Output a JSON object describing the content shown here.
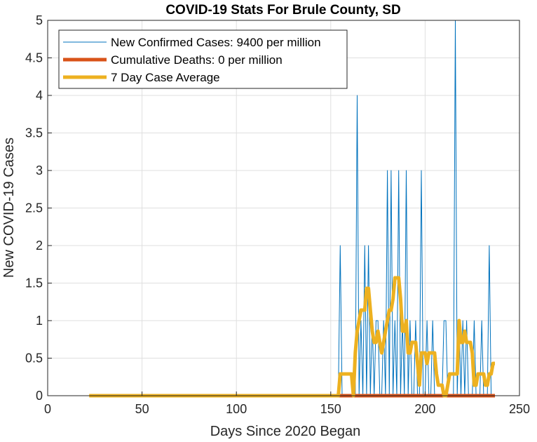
{
  "chart_data": {
    "type": "line",
    "title": "COVID-19 Stats For Brule County, SD",
    "xlabel": "Days Since 2020 Began",
    "ylabel": "New COVID-19 Cases",
    "xlim": [
      0,
      250
    ],
    "ylim": [
      0,
      5
    ],
    "xticks": [
      "0",
      "50",
      "100",
      "150",
      "200",
      "250"
    ],
    "yticks": [
      "0",
      "0.5",
      "1",
      "1.5",
      "2",
      "2.5",
      "3",
      "3.5",
      "4",
      "4.5",
      "5"
    ],
    "grid": true,
    "legend_position": "top-left",
    "series": [
      {
        "name": "New Confirmed Cases: 9400 per million",
        "color": "#0072BD",
        "x": [
          22,
          154,
          155,
          156,
          157,
          158,
          159,
          160,
          161,
          162,
          163,
          164,
          165,
          166,
          167,
          168,
          169,
          170,
          171,
          172,
          173,
          174,
          175,
          176,
          177,
          178,
          179,
          180,
          181,
          182,
          183,
          184,
          185,
          186,
          187,
          188,
          189,
          190,
          191,
          192,
          193,
          194,
          195,
          196,
          197,
          198,
          199,
          200,
          201,
          202,
          203,
          204,
          205,
          206,
          207,
          208,
          209,
          210,
          211,
          212,
          213,
          214,
          215,
          216,
          217,
          218,
          219,
          220,
          221,
          222,
          223,
          224,
          225,
          226,
          227,
          228,
          229,
          230,
          231,
          232,
          233,
          234,
          235,
          236,
          237
        ],
        "y": [
          0,
          0,
          2,
          0,
          0,
          0,
          0,
          0,
          0,
          0,
          0,
          4,
          0,
          1,
          0,
          2,
          0,
          2,
          0,
          1,
          0,
          1,
          1,
          0,
          0,
          1,
          0,
          3,
          0,
          3,
          0,
          1,
          0,
          3,
          0,
          1,
          0,
          3,
          0,
          1,
          0,
          0,
          1,
          0,
          0,
          3,
          0,
          0,
          1,
          0,
          0,
          1,
          0,
          0,
          0,
          0,
          0,
          1,
          1,
          0,
          0,
          0,
          0,
          5,
          0,
          1,
          0,
          1,
          0,
          1,
          0,
          0,
          0,
          1,
          0,
          0,
          0,
          1,
          0,
          0,
          0,
          2,
          0,
          0,
          0
        ]
      },
      {
        "name": "Cumulative Deaths: 0 per million",
        "color": "#D95319",
        "x": [
          154,
          237
        ],
        "y": [
          0,
          0
        ]
      },
      {
        "name": "7 Day Case Average",
        "color": "#EDB120",
        "x": [
          22,
          154,
          155,
          156,
          157,
          158,
          159,
          160,
          161,
          162,
          163,
          164,
          165,
          166,
          167,
          168,
          169,
          170,
          171,
          172,
          173,
          174,
          175,
          176,
          177,
          178,
          179,
          180,
          181,
          182,
          183,
          184,
          185,
          186,
          187,
          188,
          189,
          190,
          191,
          192,
          193,
          194,
          195,
          196,
          197,
          198,
          199,
          200,
          201,
          202,
          203,
          204,
          205,
          206,
          207,
          208,
          209,
          210,
          211,
          212,
          213,
          214,
          215,
          216,
          217,
          218,
          219,
          220,
          221,
          222,
          223,
          224,
          225,
          226,
          227,
          228,
          229,
          230,
          231,
          232,
          233,
          234,
          235,
          236,
          237
        ],
        "y": [
          0,
          0,
          0.29,
          0.29,
          0.29,
          0.29,
          0.29,
          0.29,
          0.29,
          0,
          0.57,
          0.86,
          1.0,
          1.14,
          1.14,
          1.14,
          1.43,
          1.43,
          1.14,
          0.86,
          0.71,
          0.71,
          0.86,
          0.71,
          0.57,
          0.71,
          0.86,
          1.0,
          1.14,
          1.14,
          1.29,
          1.57,
          1.57,
          1.57,
          1.29,
          0.86,
          0.86,
          1.0,
          0.57,
          0.57,
          0.71,
          0.71,
          0.71,
          0.43,
          0.14,
          0.57,
          0.57,
          0.57,
          0.43,
          0.57,
          0.57,
          0.57,
          0.57,
          0.29,
          0.14,
          0.14,
          0.14,
          0,
          0,
          0.14,
          0.29,
          0.29,
          0.29,
          0.29,
          0.29,
          1.0,
          0.71,
          0.71,
          0.86,
          0.71,
          0.71,
          0.71,
          0.57,
          0.14,
          0.14,
          0.29,
          0.29,
          0.29,
          0.29,
          0.14,
          0.14,
          0.29,
          0.29,
          0.43,
          0.43
        ]
      }
    ]
  }
}
